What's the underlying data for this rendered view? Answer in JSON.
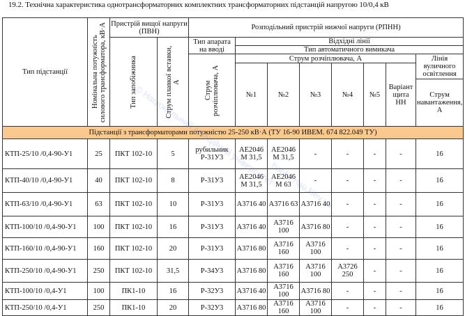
{
  "title": "19.2. Технічна характеристика однотрансформаторних комплектних трансформаторних підстанцій напругою 10/0,4 кВ",
  "headers": {
    "type": "Тип підстанції",
    "power": "Номінальна потужність силового трансформатора, кВ·А",
    "pvn": "Пристрій вищої напруги (ПВН)",
    "fuse_type": "Тип запобіжника",
    "fuse_current": "Струм плавкої вставки, А",
    "rpnn": "Розподільний пристрій нижчої напруги (РПНН)",
    "input_apparatus": "Тип апарата на вводі",
    "outgoing": "Відхідні лінії",
    "breaker_type": "Тип автоматичного вимикача",
    "release_current_v": "Струм розчіплювача, А",
    "release_current": "Струм розчіплювача, А",
    "street_light": "Лінія вуличного освітлення",
    "n1": "№1",
    "n2": "№2",
    "n3": "№3",
    "n4": "№4",
    "n5": "№5",
    "panel_variant": "Варіант щита НН",
    "load_current": "Струм навантаження, А"
  },
  "band": "Підстанції з трансформаторами потужністю 25-250 кВ·А (ТУ 16-90 ИВЕМ. 674 822.049 ТУ)",
  "rows": [
    [
      "КТП-25/10 /0,4-90-У1",
      "25",
      "ПКТ 102-10",
      "5",
      "рубильник Р-31У3",
      "АЕ2046 М 31,5",
      "АЕ2046 М 31,5",
      "-",
      "-",
      "-",
      "-",
      "16"
    ],
    [
      "КТП-40/10 /0,4-90-У1",
      "40",
      "ПКТ 102-10",
      "8",
      "Р-31У3",
      "АЕ2046 М 31,5",
      "АЕ2046 М 63",
      "-",
      "-",
      "-",
      "-",
      "16"
    ],
    [
      "КТП-63/10 /0,4-90-У1",
      "63",
      "ПКТ 102-10",
      "10",
      "Р-31У3",
      "А3716 40",
      "А3716 63",
      "А3716 40",
      "-",
      "-",
      "-",
      "16"
    ],
    [
      "КТП-100/10 /0,4-90-У1",
      "100",
      "ПКТ 102-10",
      "16",
      "Р-31У3",
      "А3716 40",
      "А3716 100",
      "А3716 80",
      "-",
      "-",
      "-",
      "16"
    ],
    [
      "КТП-160/10 /0,4-90-У1",
      "160",
      "ПКТ 102-10",
      "20",
      "Р-31У3",
      "А3716 80",
      "А3716 160",
      "А3716 100",
      "-",
      "-",
      "-",
      "16"
    ],
    [
      "КТП-250/10 /0,4-90-У1",
      "250",
      "ПКТ 102-10",
      "31,5",
      "Р-34У3",
      "А3716 80",
      "А3716 160",
      "А3716 100",
      "А3726 250",
      "-",
      "-",
      "16"
    ],
    [
      "КТП-100/10 /0,4-У1",
      "100",
      "ПК1-10",
      "16",
      "Р-32У3",
      "А3716 40",
      "А3716 100",
      "А3716 80",
      "-",
      "-",
      "-",
      "16"
    ],
    [
      "КТП-250/10 /0,4-У1",
      "250",
      "ПК1-10",
      "20",
      "Р-32У3",
      "А3716 80",
      "А3716 160",
      "А3716 100",
      "-",
      "-",
      "-",
      "16"
    ]
  ],
  "watermark": [
    "© Національний авіаційний університет",
    "books.nau.kiev.ua"
  ]
}
